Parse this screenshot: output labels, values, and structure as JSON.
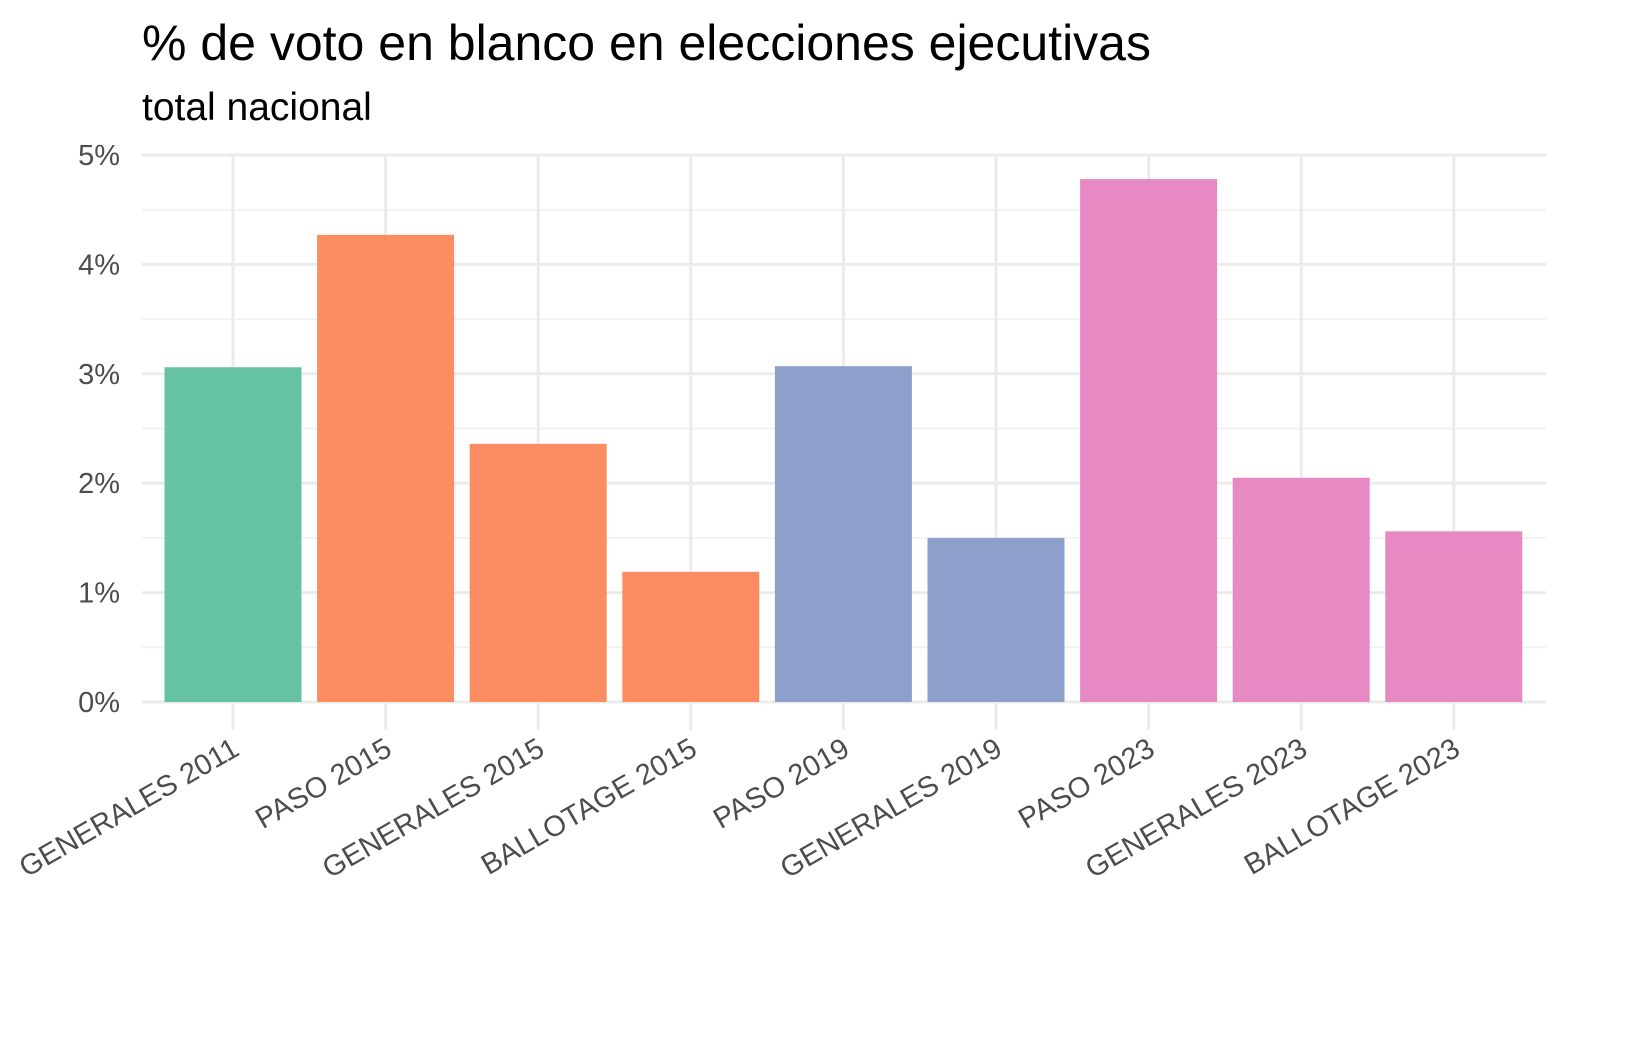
{
  "chart_data": {
    "type": "bar",
    "title": "% de voto en blanco en elecciones ejecutivas",
    "subtitle": "total nacional",
    "xlabel": "",
    "ylabel": "",
    "categories": [
      "GENERALES 2011",
      "PASO 2015",
      "GENERALES 2015",
      "BALLOTAGE 2015",
      "PASO 2019",
      "GENERALES 2019",
      "PASO 2023",
      "GENERALES 2023",
      "BALLOTAGE 2023"
    ],
    "values": [
      3.06,
      4.27,
      2.36,
      1.19,
      3.07,
      1.5,
      4.78,
      2.05,
      1.56
    ],
    "bar_colors": [
      "#66c2a5",
      "#fc8d62",
      "#fc8d62",
      "#fc8d62",
      "#8da0cb",
      "#8da0cb",
      "#e78ac3",
      "#e78ac3",
      "#e78ac3"
    ],
    "ylim": [
      0,
      5
    ],
    "y_ticks": [
      0,
      1,
      2,
      3,
      4,
      5
    ],
    "y_tick_labels": [
      "0%",
      "1%",
      "2%",
      "3%",
      "4%",
      "5%"
    ],
    "grid": true,
    "legend": "none"
  }
}
